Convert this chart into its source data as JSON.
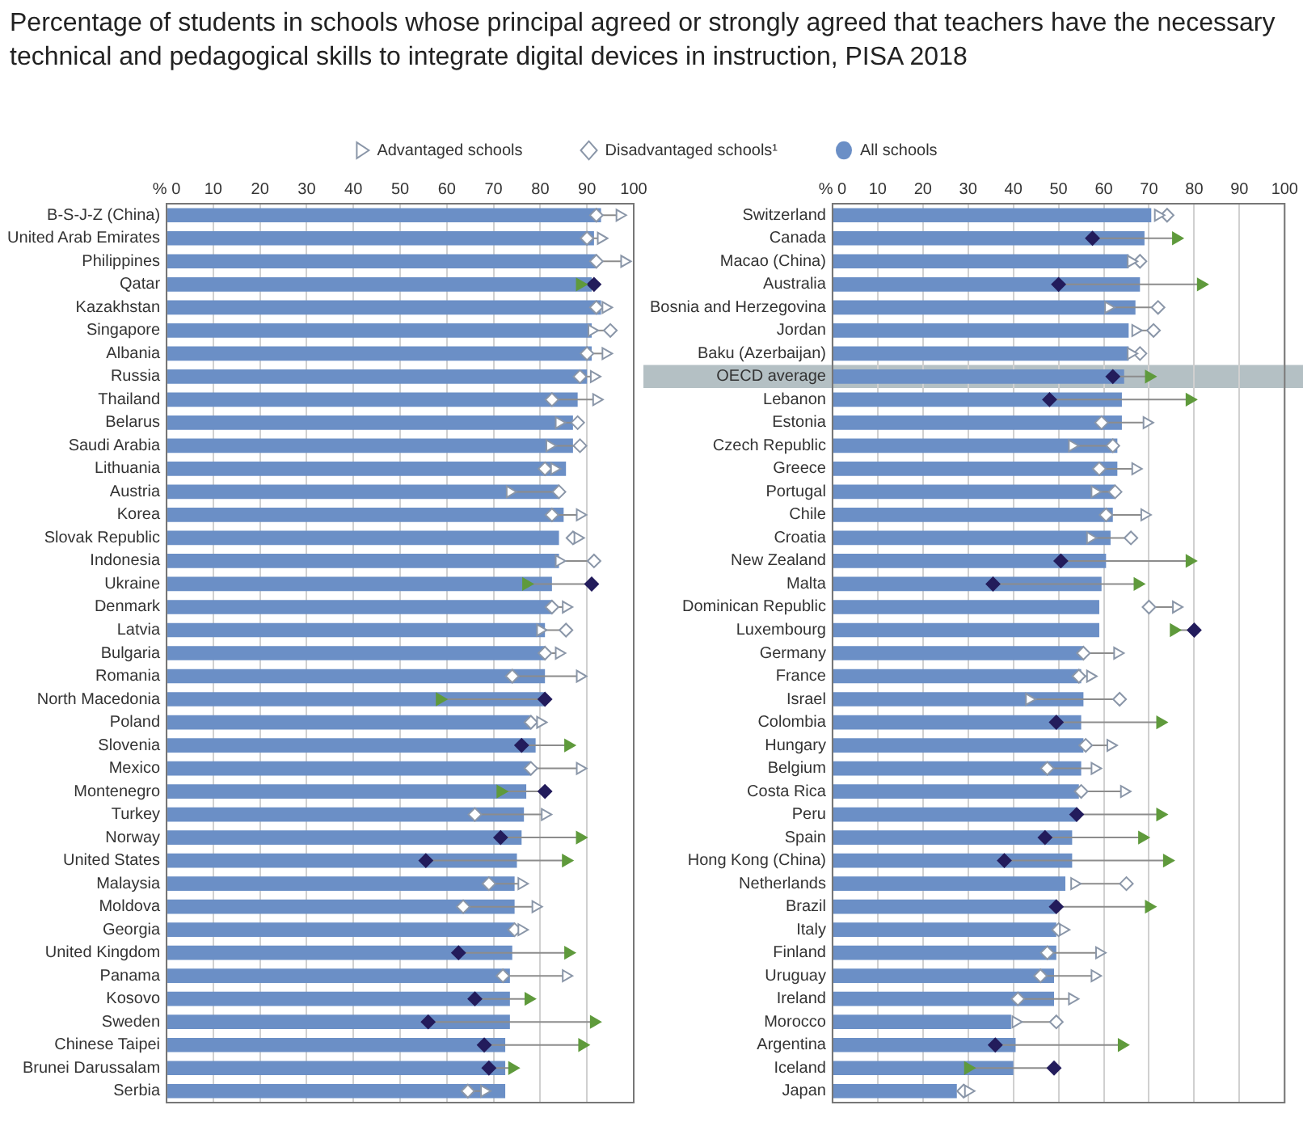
{
  "chart_data": [
    {
      "type": "bar",
      "orientation": "horizontal",
      "title": "Percentage of students in schools whose principal agreed or strongly agreed that teachers have the necessary technical and pedagogical skills to integrate digital devices in instruction, PISA 2018",
      "legend": "top",
      "grid": "x",
      "xlim": [
        0,
        100
      ],
      "xticks": [
        {
          "value": 0,
          "label": "% 0"
        },
        10,
        20,
        30,
        40,
        50,
        60,
        70,
        80,
        90,
        100
      ],
      "categories": [
        "B-S-J-Z (China)",
        "United Arab Emirates",
        "Philippines",
        "Qatar",
        "Kazakhstan",
        "Singapore",
        "Albania",
        "Russia",
        "Thailand",
        "Belarus",
        "Saudi Arabia",
        "Lithuania",
        "Austria",
        "Korea",
        "Slovak Republic",
        "Indonesia",
        "Ukraine",
        "Denmark",
        "Latvia",
        "Bulgaria",
        "Romania",
        "North Macedonia",
        "Poland",
        "Slovenia",
        "Mexico",
        "Montenegro",
        "Turkey",
        "Norway",
        "United States",
        "Malaysia",
        "Moldova",
        "Georgia",
        "United Kingdom",
        "Panama",
        "Kosovo",
        "Sweden",
        "Chinese Taipei",
        "Brunei Darussalam",
        "Serbia"
      ],
      "series": [
        {
          "type": "bar",
          "name": "All schools",
          "color": "#6b8fc6",
          "values": [
            93,
            91.5,
            92,
            91,
            93,
            91,
            91,
            90,
            88,
            87,
            87,
            85.5,
            84,
            85,
            84,
            84,
            82.5,
            82.5,
            81,
            81,
            81,
            81,
            78,
            79,
            78,
            77,
            76.5,
            76,
            75,
            74.5,
            74.5,
            74.5,
            74,
            73.5,
            73.5,
            73.5,
            72.5,
            72.5,
            72.5
          ]
        },
        {
          "type": "scatter",
          "marker": "diamond",
          "name": "Disadvantaged schools¹",
          "colors": [
            "#ffffff",
            "#ffffff",
            "#ffffff",
            "#231c5c",
            "#ffffff",
            "#ffffff",
            "#ffffff",
            "#ffffff",
            "#ffffff",
            "#ffffff",
            "#ffffff",
            "#ffffff",
            "#ffffff",
            "#ffffff",
            "#ffffff",
            "#ffffff",
            "#231c5c",
            "#ffffff",
            "#ffffff",
            "#ffffff",
            "#ffffff",
            "#231c5c",
            "#ffffff",
            "#231c5c",
            "#ffffff",
            "#231c5c",
            "#ffffff",
            "#231c5c",
            "#231c5c",
            "#ffffff",
            "#ffffff",
            "#ffffff",
            "#231c5c",
            "#ffffff",
            "#231c5c",
            "#231c5c",
            "#231c5c",
            "#231c5c",
            "#ffffff"
          ],
          "values": [
            92,
            90,
            92,
            91.5,
            92,
            95,
            90,
            88.5,
            82.5,
            88,
            88.5,
            81,
            84,
            82.5,
            87,
            91.5,
            91,
            82.5,
            85.5,
            81,
            74,
            81,
            78,
            76,
            78,
            81,
            66,
            71.5,
            55.5,
            69,
            63.5,
            74.5,
            62.5,
            72,
            66,
            56,
            68,
            69,
            64.5
          ]
        },
        {
          "type": "scatter",
          "marker": "triangle",
          "name": "Advantaged schools",
          "colors": [
            "#ffffff",
            "#ffffff",
            "#ffffff",
            "#5f9a3c",
            "#ffffff",
            "#ffffff",
            "#ffffff",
            "#ffffff",
            "#ffffff",
            "#ffffff",
            "#ffffff",
            "#ffffff",
            "#ffffff",
            "#ffffff",
            "#ffffff",
            "#ffffff",
            "#5f9a3c",
            "#ffffff",
            "#ffffff",
            "#ffffff",
            "#ffffff",
            "#5f9a3c",
            "#ffffff",
            "#5f9a3c",
            "#ffffff",
            "#5f9a3c",
            "#ffffff",
            "#5f9a3c",
            "#5f9a3c",
            "#ffffff",
            "#ffffff",
            "#ffffff",
            "#5f9a3c",
            "#ffffff",
            "#5f9a3c",
            "#5f9a3c",
            "#5f9a3c",
            "#5f9a3c",
            "#ffffff"
          ],
          "values": [
            97,
            93,
            98,
            88.5,
            94,
            91,
            94,
            91.5,
            92,
            84,
            82,
            83,
            73.5,
            88.5,
            88,
            84,
            77,
            85.5,
            80,
            84,
            88.5,
            58.5,
            80,
            86,
            88.5,
            71.5,
            81,
            88.5,
            85.5,
            76,
            79,
            76,
            86,
            85.5,
            77.5,
            91.5,
            89,
            74,
            68
          ]
        }
      ]
    },
    {
      "type": "bar",
      "orientation": "horizontal",
      "grid": "x",
      "xlim": [
        0,
        100
      ],
      "xticks": [
        {
          "value": 0,
          "label": "% 0"
        },
        10,
        20,
        30,
        40,
        50,
        60,
        70,
        80,
        90,
        100
      ],
      "categories": [
        "Switzerland",
        "Canada",
        "Macao (China)",
        "Australia",
        "Bosnia and Herzegovina",
        "Jordan",
        "Baku (Azerbaijan)",
        "OECD average",
        "Lebanon",
        "Estonia",
        "Czech Republic",
        "Greece",
        "Portugal",
        "Chile",
        "Croatia",
        "New Zealand",
        "Malta",
        "Dominican Republic",
        "Luxembourg",
        "Germany",
        "France",
        "Israel",
        "Colombia",
        "Hungary",
        "Belgium",
        "Costa Rica",
        "Peru",
        "Spain",
        "Hong Kong (China)",
        "Netherlands",
        "Brazil",
        "Italy",
        "Finland",
        "Uruguay",
        "Ireland",
        "Morocco",
        "Argentina",
        "Iceland",
        "Japan"
      ],
      "bands": [
        {
          "axis": "y",
          "from": "OECD average",
          "to": "OECD average",
          "color": "#b4c0c4"
        }
      ],
      "series": [
        {
          "type": "bar",
          "color": "#6b8fc6",
          "values": [
            70.5,
            69,
            65.5,
            68,
            67,
            65.5,
            65.5,
            64.5,
            64,
            64,
            63,
            63,
            62.5,
            62,
            61.5,
            60.5,
            59.5,
            59,
            59,
            55.5,
            55,
            55.5,
            55,
            55.5,
            55,
            54.5,
            54,
            53,
            53,
            51.5,
            49.5,
            49.5,
            49.5,
            49,
            49,
            39.5,
            40.5,
            40,
            27.5
          ]
        },
        {
          "type": "scatter",
          "marker": "diamond",
          "colors": [
            "#ffffff",
            "#231c5c",
            "#ffffff",
            "#231c5c",
            "#ffffff",
            "#ffffff",
            "#ffffff",
            "#231c5c",
            "#231c5c",
            "#ffffff",
            "#ffffff",
            "#ffffff",
            "#ffffff",
            "#ffffff",
            "#ffffff",
            "#231c5c",
            "#231c5c",
            "#ffffff",
            "#231c5c",
            "#ffffff",
            "#ffffff",
            "#ffffff",
            "#231c5c",
            "#ffffff",
            "#ffffff",
            "#ffffff",
            "#231c5c",
            "#231c5c",
            "#231c5c",
            "#ffffff",
            "#231c5c",
            "#ffffff",
            "#ffffff",
            "#ffffff",
            "#ffffff",
            "#ffffff",
            "#231c5c",
            "#231c5c",
            "#ffffff"
          ],
          "values": [
            74,
            57.5,
            68,
            50,
            72,
            71,
            68,
            62,
            48,
            59.5,
            62,
            59,
            62.5,
            60.5,
            66,
            50.5,
            35.5,
            70,
            80,
            55.5,
            54.5,
            63.5,
            49.5,
            56,
            47.5,
            55,
            54,
            47,
            38,
            65,
            49.5,
            50,
            47.5,
            46,
            41,
            49.5,
            36,
            49,
            29
          ]
        },
        {
          "type": "scatter",
          "marker": "triangle",
          "colors": [
            "#ffffff",
            "#5f9a3c",
            "#ffffff",
            "#5f9a3c",
            "#ffffff",
            "#ffffff",
            "#ffffff",
            "#5f9a3c",
            "#5f9a3c",
            "#ffffff",
            "#ffffff",
            "#ffffff",
            "#ffffff",
            "#ffffff",
            "#ffffff",
            "#5f9a3c",
            "#5f9a3c",
            "#ffffff",
            "#5f9a3c",
            "#ffffff",
            "#ffffff",
            "#ffffff",
            "#5f9a3c",
            "#ffffff",
            "#ffffff",
            "#ffffff",
            "#5f9a3c",
            "#5f9a3c",
            "#5f9a3c",
            "#ffffff",
            "#5f9a3c",
            "#ffffff",
            "#ffffff",
            "#ffffff",
            "#ffffff",
            "#ffffff",
            "#5f9a3c",
            "#5f9a3c",
            "#ffffff"
          ],
          "values": [
            72,
            76,
            66,
            81.5,
            61,
            67,
            66,
            70,
            79,
            69.5,
            53,
            67,
            58,
            69,
            57,
            79,
            67.5,
            76,
            75.5,
            63,
            57,
            43.5,
            72.5,
            61.5,
            58,
            64.5,
            72.5,
            68.5,
            74,
            53.5,
            70,
            51,
            59,
            58,
            53,
            40.5,
            64,
            30,
            30
          ]
        }
      ]
    }
  ]
}
